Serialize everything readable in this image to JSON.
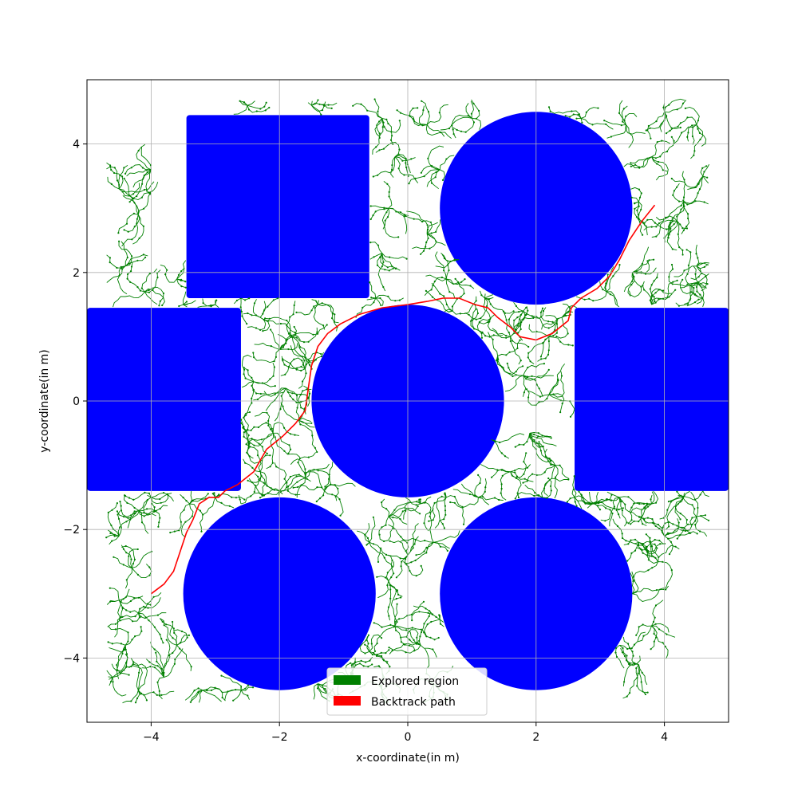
{
  "chart_data": {
    "type": "scatter",
    "title": "",
    "xlabel": "x-coordinate(in m)",
    "ylabel": "y-coordinate(in m)",
    "xlim": [
      -5,
      5
    ],
    "ylim": [
      -5,
      5
    ],
    "xticks": [
      -4,
      -2,
      0,
      2,
      4
    ],
    "yticks": [
      -4,
      -2,
      0,
      2,
      4
    ],
    "xtick_labels": [
      "−4",
      "−2",
      "0",
      "2",
      "4"
    ],
    "ytick_labels": [
      "−4",
      "−2",
      "0",
      "2",
      "4"
    ],
    "grid": true,
    "legend_position": "bottom-center",
    "obstacle_color": "#0000ff",
    "obstacles": [
      {
        "shape": "rect",
        "x_range": [
          -3.45,
          -0.6
        ],
        "y_range": [
          1.6,
          4.45
        ]
      },
      {
        "shape": "rect",
        "x_range": [
          -5.0,
          -2.6
        ],
        "y_range": [
          -1.4,
          1.45
        ]
      },
      {
        "shape": "rect",
        "x_range": [
          2.6,
          5.0
        ],
        "y_range": [
          -1.4,
          1.45
        ]
      },
      {
        "shape": "circle",
        "center": [
          0,
          0
        ],
        "radius": 1.5
      },
      {
        "shape": "circle",
        "center": [
          2,
          3
        ],
        "radius": 1.5
      },
      {
        "shape": "circle",
        "center": [
          -2,
          -3
        ],
        "radius": 1.5
      },
      {
        "shape": "circle",
        "center": [
          2,
          -3
        ],
        "radius": 1.5
      }
    ],
    "series": [
      {
        "name": "Explored region",
        "color": "#008000",
        "anchor_points": [
          [
            -4.0,
            3.6
          ],
          [
            -4.2,
            2.9
          ],
          [
            -4.4,
            2.1
          ],
          [
            -4.1,
            1.7
          ],
          [
            -3.6,
            1.9
          ],
          [
            -3.9,
            1.3
          ],
          [
            -4.5,
            3.3
          ],
          [
            -3.5,
            1.5
          ],
          [
            -2.3,
            1.3
          ],
          [
            -2.0,
            0.8
          ],
          [
            -1.9,
            0.2
          ],
          [
            -2.1,
            -0.5
          ],
          [
            -2.3,
            -1.1
          ],
          [
            -2.0,
            -1.4
          ],
          [
            -1.6,
            -1.2
          ],
          [
            -1.6,
            0.5
          ],
          [
            -1.8,
            1.0
          ],
          [
            -0.5,
            1.6
          ],
          [
            -0.4,
            2.3
          ],
          [
            -0.3,
            3.0
          ],
          [
            -0.2,
            3.8
          ],
          [
            -0.4,
            4.4
          ],
          [
            0.3,
            4.3
          ],
          [
            0.5,
            3.6
          ],
          [
            0.3,
            2.6
          ],
          [
            0.6,
            1.9
          ],
          [
            -2.5,
            4.6
          ],
          [
            -1.5,
            4.6
          ],
          [
            1.0,
            4.4
          ],
          [
            0.8,
            2.2
          ],
          [
            0.7,
            1.4
          ],
          [
            1.2,
            1.6
          ],
          [
            2.7,
            4.4
          ],
          [
            3.4,
            4.3
          ],
          [
            4.0,
            4.5
          ],
          [
            4.5,
            4.3
          ],
          [
            4.6,
            3.5
          ],
          [
            4.2,
            2.8
          ],
          [
            4.5,
            2.1
          ],
          [
            4.6,
            1.6
          ],
          [
            3.8,
            1.5
          ],
          [
            3.5,
            2.0
          ],
          [
            3.6,
            3.1
          ],
          [
            3.8,
            3.8
          ],
          [
            4.3,
            3.1
          ],
          [
            1.6,
            1.0
          ],
          [
            1.8,
            0.4
          ],
          [
            2.2,
            0.1
          ],
          [
            1.9,
            -0.5
          ],
          [
            2.3,
            -1.0
          ],
          [
            1.6,
            -1.1
          ],
          [
            1.1,
            -1.5
          ],
          [
            0.6,
            -1.5
          ],
          [
            1.8,
            1.4
          ],
          [
            2.4,
            1.3
          ],
          [
            2.1,
            -1.5
          ],
          [
            2.6,
            -1.5
          ],
          [
            2.9,
            -1.6
          ],
          [
            3.3,
            -1.5
          ],
          [
            3.8,
            -1.6
          ],
          [
            4.3,
            -1.5
          ],
          [
            4.6,
            -1.4
          ],
          [
            3.6,
            -2.2
          ],
          [
            3.9,
            -2.5
          ],
          [
            3.5,
            -3.0
          ],
          [
            3.8,
            -3.5
          ],
          [
            3.3,
            -3.8
          ],
          [
            3.6,
            -4.1
          ],
          [
            4.0,
            -2.1
          ],
          [
            4.5,
            -1.8
          ],
          [
            -4.2,
            -1.7
          ],
          [
            -4.5,
            -2.1
          ],
          [
            -4.3,
            -2.6
          ],
          [
            -4.5,
            -3.1
          ],
          [
            -4.2,
            -3.3
          ],
          [
            -4.4,
            -3.8
          ],
          [
            -4.6,
            -4.3
          ],
          [
            -4.2,
            -4.5
          ],
          [
            -3.8,
            -4.3
          ],
          [
            -3.6,
            -3.8
          ],
          [
            -3.4,
            -1.6
          ],
          [
            -3.0,
            -1.5
          ],
          [
            -2.6,
            -1.6
          ],
          [
            -4.0,
            -1.5
          ],
          [
            -3.2,
            -4.5
          ],
          [
            -2.6,
            -4.5
          ],
          [
            -1.4,
            -4.4
          ],
          [
            -0.9,
            -4.3
          ],
          [
            -0.6,
            -3.9
          ],
          [
            -0.2,
            -3.5
          ],
          [
            0.2,
            -3.8
          ],
          [
            0.5,
            -3.4
          ],
          [
            -0.3,
            -2.8
          ],
          [
            0.0,
            -2.4
          ],
          [
            0.4,
            -2.2
          ],
          [
            -0.3,
            -1.8
          ],
          [
            0.2,
            -1.6
          ],
          [
            -0.6,
            -2.2
          ],
          [
            0.4,
            -4.4
          ],
          [
            -0.4,
            -4.5
          ],
          [
            0.6,
            -2.8
          ],
          [
            -1.2,
            1.8
          ],
          [
            -1.4,
            1.5
          ],
          [
            -2.6,
            1.6
          ],
          [
            -3.0,
            1.5
          ],
          [
            1.2,
            0.2
          ],
          [
            1.3,
            -0.6
          ],
          [
            1.4,
            0.7
          ],
          [
            -1.3,
            -1.4
          ],
          [
            -2.4,
            0.3
          ],
          [
            -2.5,
            -0.6
          ],
          [
            -1.7,
            -0.3
          ],
          [
            4.4,
            1.8
          ],
          [
            3.1,
            1.7
          ],
          [
            2.2,
            1.0
          ],
          [
            1.1,
            1.1
          ]
        ]
      },
      {
        "name": "Backtrack path",
        "color": "#ff0000",
        "x": [
          -4.0,
          -3.8,
          -3.65,
          -3.55,
          -3.45,
          -3.35,
          -3.25,
          -3.1,
          -2.95,
          -2.85,
          -2.65,
          -2.4,
          -2.2,
          -1.95,
          -1.75,
          -1.6,
          -1.55,
          -1.5,
          -1.4,
          -1.25,
          -1.05,
          -0.75,
          -0.4,
          0.0,
          0.3,
          0.55,
          0.8,
          1.05,
          1.25,
          1.4,
          1.6,
          1.75,
          2.0,
          2.25,
          2.5,
          2.55,
          2.7,
          2.95,
          3.15,
          3.3,
          3.45,
          3.65,
          3.85
        ],
        "y": [
          -3.0,
          -2.85,
          -2.65,
          -2.35,
          -2.05,
          -1.85,
          -1.6,
          -1.5,
          -1.5,
          -1.4,
          -1.3,
          -1.1,
          -0.75,
          -0.55,
          -0.35,
          -0.15,
          0.2,
          0.55,
          0.85,
          1.05,
          1.2,
          1.35,
          1.45,
          1.5,
          1.55,
          1.6,
          1.6,
          1.5,
          1.45,
          1.3,
          1.15,
          1.0,
          0.95,
          1.05,
          1.25,
          1.45,
          1.6,
          1.75,
          1.95,
          2.2,
          2.5,
          2.8,
          3.05
        ]
      }
    ]
  },
  "legend": {
    "items": [
      {
        "label": "Explored region",
        "color": "#008000"
      },
      {
        "label": "Backtrack path",
        "color": "#ff0000"
      }
    ]
  }
}
